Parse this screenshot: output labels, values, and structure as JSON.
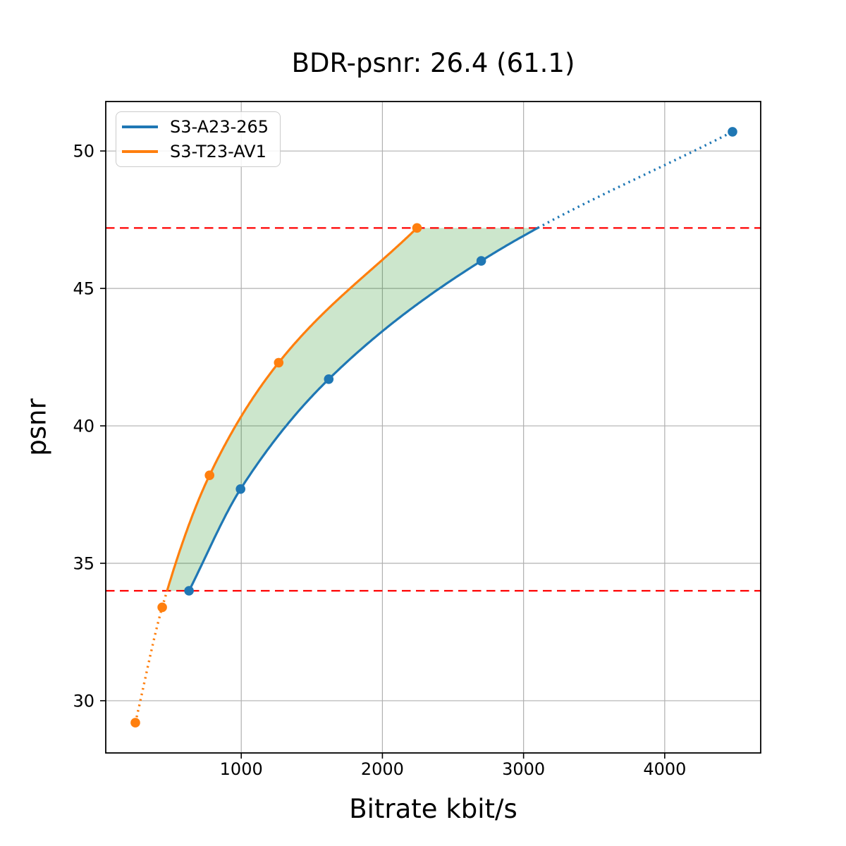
{
  "figure": {
    "background": "#ffffff"
  },
  "chart_data": {
    "type": "line",
    "title": "BDR-psnr: 26.4 (61.1)",
    "xlabel": "Bitrate kbit/s",
    "ylabel": "psnr",
    "xlim": [
      40,
      4680
    ],
    "ylim": [
      28.1,
      51.8
    ],
    "x_ticks": [
      1000,
      2000,
      3000,
      4000
    ],
    "y_ticks": [
      30,
      35,
      40,
      45,
      50
    ],
    "grid": true,
    "grid_color": "#b0b0b0",
    "legend_position": "upper-left",
    "series": [
      {
        "name": "S3-A23-265",
        "color": "#1f77b4",
        "x": [
          630,
          995,
          1620,
          2700,
          4480
        ],
        "y": [
          34.0,
          37.7,
          41.7,
          46.0,
          50.7
        ],
        "style_note": "solid inside BD overlap range, dotted outside"
      },
      {
        "name": "S3-T23-AV1",
        "color": "#ff7f0e",
        "x": [
          250,
          440,
          775,
          1265,
          2245
        ],
        "y": [
          29.2,
          33.4,
          38.2,
          42.3,
          47.2
        ],
        "style_note": "solid inside BD overlap range, dotted outside"
      }
    ],
    "bd_overlap": {
      "lower_psnr": 34.0,
      "upper_psnr": 47.2,
      "bound_line_color": "#ff0000",
      "fill_color": "rgba(0,128,0,0.2)"
    }
  }
}
